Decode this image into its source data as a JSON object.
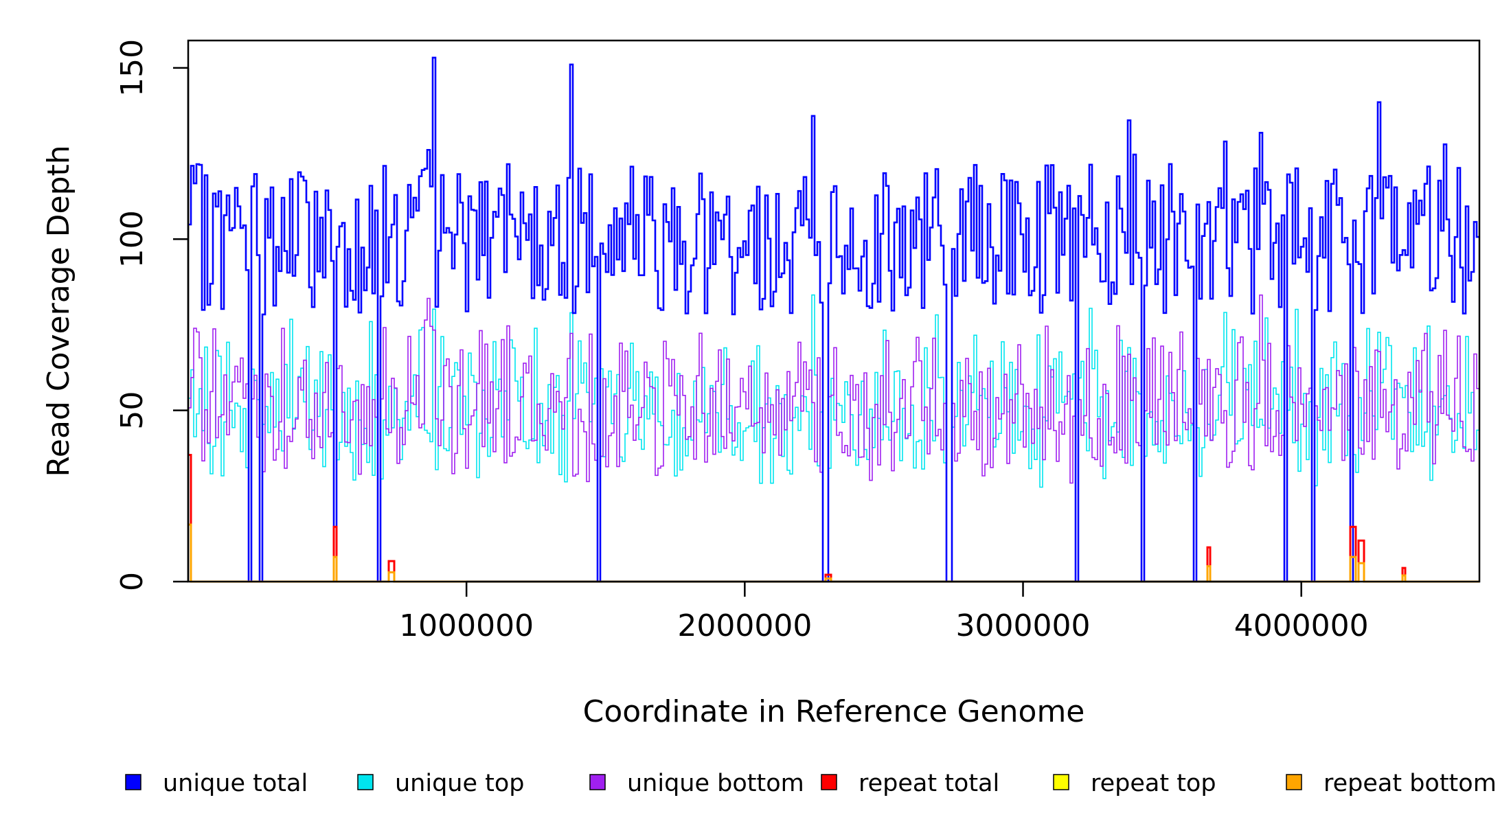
{
  "chart_data": {
    "type": "line",
    "style": "step",
    "xlabel": "Coordinate in Reference Genome",
    "ylabel": "Read Coverage Depth",
    "xlim": [
      0,
      4640000
    ],
    "ylim": [
      0,
      158
    ],
    "x_ticks": [
      1000000,
      2000000,
      3000000,
      4000000
    ],
    "x_tick_labels": [
      "1000000",
      "2000000",
      "3000000",
      "4000000"
    ],
    "y_ticks": [
      0,
      50,
      100,
      150
    ],
    "y_tick_labels": [
      "0",
      "50",
      "100",
      "150"
    ],
    "grid": false,
    "legend_position": "bottom",
    "bin_count": 470,
    "series": [
      {
        "name": "unique total",
        "color": "#0000ff"
      },
      {
        "name": "unique top",
        "color": "#00e5ee"
      },
      {
        "name": "unique bottom",
        "color": "#a020f0"
      },
      {
        "name": "repeat total",
        "color": "#ff0000"
      },
      {
        "name": "repeat top",
        "color": "#ffff00"
      },
      {
        "name": "repeat bottom",
        "color": "#ffa500"
      }
    ],
    "unique_total_typical_range": [
      75,
      125
    ],
    "unique_total_peaks": [
      {
        "x": 880000,
        "y": 153
      },
      {
        "x": 1380000,
        "y": 151
      },
      {
        "x": 4280000,
        "y": 140
      }
    ],
    "coverage_dropouts": [
      220000,
      265000,
      525000,
      685000,
      1475000,
      2290000,
      2735000,
      3190000,
      3430000,
      3620000,
      3945000,
      4040000,
      4180000
    ],
    "repeat_spikes": [
      {
        "x": 8000,
        "y": 37
      },
      {
        "x": 525000,
        "y": 16
      },
      {
        "x": 730000,
        "y": 6
      },
      {
        "x": 2300000,
        "y": 2
      },
      {
        "x": 3665000,
        "y": 10
      },
      {
        "x": 4185000,
        "y": 16
      },
      {
        "x": 4215000,
        "y": 12
      },
      {
        "x": 4365000,
        "y": 4
      }
    ]
  }
}
